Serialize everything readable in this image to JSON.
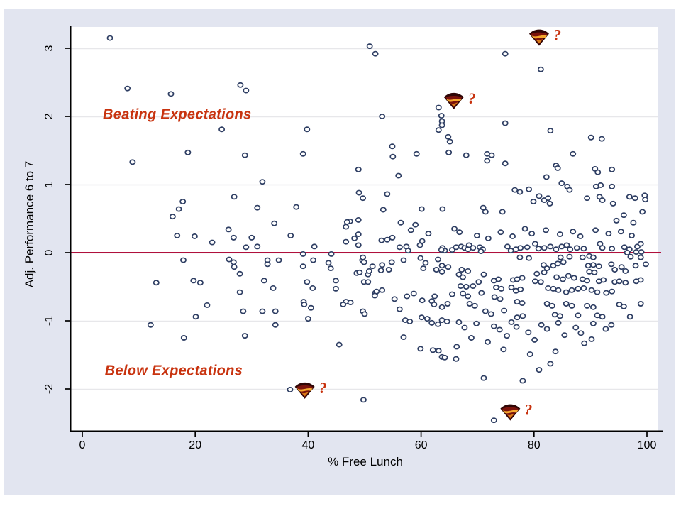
{
  "colors": {
    "graph_region": "#e2e5f0",
    "plot_background": "#ffffff",
    "gridline": "#e7e7ea",
    "axis_line": "#000000",
    "marker_stroke": "#2e3e63",
    "marker_fill": "#ffffff",
    "zero_line": "#b0103c",
    "annotation_text": "#c8330f",
    "shield_dark": "#2f0606",
    "shield_red": "#7c130c",
    "shield_gold": "#f5a82e",
    "shield_amber": "#d97b18"
  },
  "chart_data": {
    "type": "scatter",
    "title": "",
    "xlabel": "% Free Lunch",
    "ylabel": "Adj. Performance 6 to 7",
    "xlim": [
      0,
      100
    ],
    "ylim": [
      -2.6,
      3.3
    ],
    "xticks": [
      0,
      20,
      40,
      60,
      80,
      100
    ],
    "yticks": [
      -2,
      -1,
      0,
      1,
      2,
      3
    ],
    "grid": "horizontal",
    "refline": {
      "y": 0
    },
    "annotations": [
      {
        "text": "Beating Expectations",
        "x": 16.8,
        "y": 2.02
      },
      {
        "text": "Below Expectations",
        "x": 16.2,
        "y": -1.74
      }
    ],
    "superman_markers": [
      {
        "x": 80.9,
        "y": 3.16,
        "label": "?"
      },
      {
        "x": 65.8,
        "y": 2.23,
        "label": "?"
      },
      {
        "x": 39.4,
        "y": -2.02,
        "label": "?"
      },
      {
        "x": 75.8,
        "y": -2.34,
        "label": "?"
      }
    ],
    "points": [
      [
        4.9,
        3.15
      ],
      [
        8,
        2.41
      ],
      [
        15.7,
        2.33
      ],
      [
        28,
        2.46
      ],
      [
        29,
        2.38
      ],
      [
        24.7,
        1.81
      ],
      [
        39.8,
        1.81
      ],
      [
        18.7,
        1.47
      ],
      [
        28.8,
        1.43
      ],
      [
        39.1,
        1.45
      ],
      [
        8.9,
        1.33
      ],
      [
        31.9,
        1.04
      ],
      [
        26.9,
        0.82
      ],
      [
        17.8,
        0.75
      ],
      [
        17.1,
        0.64
      ],
      [
        16,
        0.53
      ],
      [
        31,
        0.66
      ],
      [
        37.9,
        0.67
      ],
      [
        34,
        0.43
      ],
      [
        25.9,
        0.34
      ],
      [
        16.8,
        0.25
      ],
      [
        19.9,
        0.24
      ],
      [
        23,
        0.15
      ],
      [
        26.8,
        0.22
      ],
      [
        30,
        0.22
      ],
      [
        29,
        0.08
      ],
      [
        31,
        0.09
      ],
      [
        36.9,
        0.25
      ],
      [
        41.1,
        0.09
      ],
      [
        46.7,
        0.38
      ],
      [
        47.4,
        0.46
      ],
      [
        48.9,
        0.27
      ],
      [
        44.1,
        -0.02
      ],
      [
        39.1,
        -0.02
      ],
      [
        40.9,
        -0.11
      ],
      [
        39.1,
        -0.2
      ],
      [
        43.6,
        -0.15
      ],
      [
        44,
        -0.23
      ],
      [
        17.9,
        -0.11
      ],
      [
        26,
        -0.1
      ],
      [
        26.8,
        -0.14
      ],
      [
        26.9,
        -0.21
      ],
      [
        32.8,
        -0.11
      ],
      [
        32.8,
        -0.17
      ],
      [
        34.8,
        -0.11
      ],
      [
        27.9,
        -0.31
      ],
      [
        19.7,
        -0.41
      ],
      [
        20.9,
        -0.44
      ],
      [
        13.1,
        -0.44
      ],
      [
        32.2,
        -0.41
      ],
      [
        33.8,
        -0.52
      ],
      [
        27.9,
        -0.58
      ],
      [
        22.1,
        -0.77
      ],
      [
        28.5,
        -0.86
      ],
      [
        39.2,
        -0.72
      ],
      [
        39.8,
        -0.43
      ],
      [
        40.8,
        -0.52
      ],
      [
        44.9,
        -0.41
      ],
      [
        44.9,
        -0.53
      ],
      [
        46.7,
        -0.72
      ],
      [
        48.6,
        -0.3
      ],
      [
        50.6,
        -0.32
      ],
      [
        49.9,
        -0.43
      ],
      [
        50.6,
        -0.43
      ],
      [
        49.6,
        -0.11
      ],
      [
        49.9,
        -0.14
      ],
      [
        51.9,
        -0.59
      ],
      [
        20.1,
        -0.94
      ],
      [
        12.1,
        -1.06
      ],
      [
        18,
        -1.25
      ],
      [
        34.2,
        -0.86
      ],
      [
        31.9,
        -0.86
      ],
      [
        28.8,
        -1.22
      ],
      [
        34.2,
        -1.06
      ],
      [
        39.3,
        -0.76
      ],
      [
        40.5,
        -0.81
      ],
      [
        40,
        -0.97
      ],
      [
        36.8,
        -2.01
      ],
      [
        45.5,
        -1.35
      ],
      [
        50.9,
        3.03
      ],
      [
        51.9,
        2.92
      ],
      [
        74.9,
        2.92
      ],
      [
        81.2,
        2.69
      ],
      [
        53.1,
        2
      ],
      [
        63.1,
        2.13
      ],
      [
        63.7,
        1.93
      ],
      [
        63.7,
        1.87
      ],
      [
        63.1,
        1.8
      ],
      [
        74.9,
        1.9
      ],
      [
        82.9,
        1.79
      ],
      [
        64.8,
        1.7
      ],
      [
        65.1,
        1.63
      ],
      [
        90.1,
        1.69
      ],
      [
        92,
        1.67
      ],
      [
        54.9,
        1.56
      ],
      [
        55,
        1.41
      ],
      [
        59.2,
        1.45
      ],
      [
        64.9,
        1.47
      ],
      [
        68,
        1.43
      ],
      [
        71.7,
        1.45
      ],
      [
        72.5,
        1.43
      ],
      [
        71.7,
        1.35
      ],
      [
        74.9,
        1.31
      ],
      [
        86.9,
        1.45
      ],
      [
        48.9,
        1.22
      ],
      [
        56,
        1.13
      ],
      [
        83.9,
        1.28
      ],
      [
        84.2,
        1.24
      ],
      [
        90.8,
        1.23
      ],
      [
        91.3,
        1.18
      ],
      [
        93.8,
        1.22
      ],
      [
        82.2,
        1.11
      ],
      [
        84.9,
        1.02
      ],
      [
        49,
        0.88
      ],
      [
        49.7,
        0.8
      ],
      [
        46.9,
        0.45
      ],
      [
        48.9,
        0.48
      ],
      [
        53.3,
        0.63
      ],
      [
        54,
        0.86
      ],
      [
        60.1,
        0.64
      ],
      [
        63.8,
        0.64
      ],
      [
        71,
        0.66
      ],
      [
        71.4,
        0.6
      ],
      [
        74.4,
        0.6
      ],
      [
        76.6,
        0.92
      ],
      [
        77.5,
        0.89
      ],
      [
        79.1,
        0.93
      ],
      [
        79.9,
        0.75
      ],
      [
        80.9,
        0.83
      ],
      [
        81.8,
        0.77
      ],
      [
        82.8,
        0.72
      ],
      [
        82.5,
        0.8
      ],
      [
        85.9,
        0.97
      ],
      [
        86.3,
        0.92
      ],
      [
        91,
        0.97
      ],
      [
        91.8,
        0.99
      ],
      [
        93.8,
        0.97
      ],
      [
        89.4,
        0.8
      ],
      [
        91.6,
        0.82
      ],
      [
        92.1,
        0.77
      ],
      [
        94,
        0.72
      ],
      [
        96.9,
        0.82
      ],
      [
        97.9,
        0.8
      ],
      [
        99.6,
        0.84
      ],
      [
        99.7,
        0.78
      ],
      [
        48.2,
        0.21
      ],
      [
        46.7,
        0.16
      ],
      [
        48.9,
        0.11
      ],
      [
        53,
        0.18
      ],
      [
        54,
        0.19
      ],
      [
        54.9,
        0.22
      ],
      [
        57.4,
        0.09
      ],
      [
        57.7,
        0.03
      ],
      [
        60.2,
        0.17
      ],
      [
        63.8,
        0.07
      ],
      [
        64.2,
        0.03
      ],
      [
        68.5,
        0.11
      ],
      [
        69.2,
        0.07
      ],
      [
        70.4,
        0.08
      ],
      [
        70.9,
        0.05
      ],
      [
        75.3,
        0.09
      ],
      [
        75.9,
        0.03
      ],
      [
        76.8,
        0.05
      ],
      [
        77.6,
        0.07
      ],
      [
        78.8,
        0.08
      ],
      [
        80.2,
        0.13
      ],
      [
        80.8,
        0.06
      ],
      [
        81.8,
        0.07
      ],
      [
        82.9,
        0.09
      ],
      [
        83.9,
        0.05
      ],
      [
        84.9,
        0.09
      ],
      [
        85.8,
        0.11
      ],
      [
        86.4,
        0.05
      ],
      [
        87.6,
        0.07
      ],
      [
        88.8,
        0.06
      ],
      [
        91.7,
        0.13
      ],
      [
        92.1,
        0.07
      ],
      [
        93.8,
        0.06
      ],
      [
        96,
        0.08
      ],
      [
        96.9,
        0.05
      ],
      [
        98.3,
        0.09
      ],
      [
        98.9,
        0.13
      ],
      [
        96.5,
        0
      ],
      [
        98.1,
        0.01
      ],
      [
        99,
        0.01
      ],
      [
        56.2,
        0.08
      ],
      [
        59.8,
        0.11
      ],
      [
        66.2,
        0.08
      ],
      [
        67.1,
        0.09
      ],
      [
        67.7,
        0.07
      ],
      [
        68.3,
        0.05
      ],
      [
        63.6,
        0.04
      ],
      [
        65.5,
        0.04
      ],
      [
        70.6,
        0.02
      ],
      [
        63.6,
        2.01
      ],
      [
        56.4,
        0.44
      ],
      [
        58.2,
        0.33
      ],
      [
        61.3,
        0.28
      ],
      [
        59,
        0.41
      ],
      [
        65.9,
        0.35
      ],
      [
        66.8,
        0.3
      ],
      [
        69.9,
        0.25
      ],
      [
        71.9,
        0.21
      ],
      [
        74.1,
        0.3
      ],
      [
        76.2,
        0.24
      ],
      [
        78.4,
        0.35
      ],
      [
        79.6,
        0.28
      ],
      [
        82.1,
        0.33
      ],
      [
        84.6,
        0.27
      ],
      [
        86.9,
        0.31
      ],
      [
        88.2,
        0.24
      ],
      [
        90.9,
        0.33
      ],
      [
        93.2,
        0.28
      ],
      [
        95.4,
        0.31
      ],
      [
        97.3,
        0.25
      ],
      [
        95.9,
        0.55
      ],
      [
        97.6,
        0.44
      ],
      [
        99.2,
        0.6
      ],
      [
        94.6,
        0.47
      ],
      [
        49.7,
        -0.07
      ],
      [
        51.4,
        -0.2
      ],
      [
        53.1,
        -0.18
      ],
      [
        52.9,
        -0.26
      ],
      [
        49.1,
        -0.29
      ],
      [
        50.8,
        -0.27
      ],
      [
        54.3,
        -0.25
      ],
      [
        54.8,
        -0.14
      ],
      [
        56.9,
        -0.11
      ],
      [
        59.9,
        -0.08
      ],
      [
        60.8,
        -0.15
      ],
      [
        60.4,
        -0.23
      ],
      [
        63,
        -0.1
      ],
      [
        63.7,
        -0.19
      ],
      [
        62.7,
        -0.25
      ],
      [
        63.7,
        -0.28
      ],
      [
        66.7,
        -0.32
      ],
      [
        67.2,
        -0.25
      ],
      [
        68.3,
        -0.27
      ],
      [
        67.4,
        -0.36
      ],
      [
        64.8,
        -0.21
      ],
      [
        67,
        -0.49
      ],
      [
        68,
        -0.5
      ],
      [
        69.2,
        -0.49
      ],
      [
        67.4,
        -0.6
      ],
      [
        68.3,
        -0.64
      ],
      [
        70.2,
        -0.43
      ],
      [
        71.1,
        -0.32
      ],
      [
        72.9,
        -0.41
      ],
      [
        73.7,
        -0.39
      ],
      [
        73.3,
        -0.51
      ],
      [
        74.2,
        -0.53
      ],
      [
        76.3,
        -0.4
      ],
      [
        77,
        -0.39
      ],
      [
        77.9,
        -0.37
      ],
      [
        76,
        -0.51
      ],
      [
        76.8,
        -0.56
      ],
      [
        77.6,
        -0.54
      ],
      [
        80.5,
        -0.31
      ],
      [
        81.8,
        -0.29
      ],
      [
        77.5,
        -0.07
      ],
      [
        79.1,
        -0.08
      ],
      [
        84.7,
        -0.07
      ],
      [
        86.3,
        -0.06
      ],
      [
        88.6,
        -0.07
      ],
      [
        89.8,
        -0.05
      ],
      [
        90.5,
        -0.07
      ],
      [
        97.1,
        -0.06
      ],
      [
        98.9,
        -0.07
      ],
      [
        81.7,
        -0.18
      ],
      [
        82.3,
        -0.23
      ],
      [
        83.4,
        -0.19
      ],
      [
        84,
        -0.36
      ],
      [
        85.1,
        -0.39
      ],
      [
        86.1,
        -0.34
      ],
      [
        87.1,
        -0.37
      ],
      [
        84.2,
        -0.16
      ],
      [
        85.2,
        -0.14
      ],
      [
        89.6,
        -0.19
      ],
      [
        90.5,
        -0.18
      ],
      [
        91.5,
        -0.2
      ],
      [
        89.8,
        -0.28
      ],
      [
        90.7,
        -0.29
      ],
      [
        93.7,
        -0.17
      ],
      [
        94.3,
        -0.25
      ],
      [
        95.5,
        -0.21
      ],
      [
        96.2,
        -0.27
      ],
      [
        98,
        -0.19
      ],
      [
        99.8,
        -0.17
      ],
      [
        88.6,
        -0.39
      ],
      [
        89.4,
        -0.41
      ],
      [
        91.5,
        -0.42
      ],
      [
        92.3,
        -0.4
      ],
      [
        94.3,
        -0.43
      ],
      [
        95.1,
        -0.42
      ],
      [
        96.2,
        -0.44
      ],
      [
        98.1,
        -0.42
      ],
      [
        98.9,
        -0.4
      ],
      [
        80.2,
        -0.42
      ],
      [
        81.2,
        -0.43
      ],
      [
        82.5,
        -0.52
      ],
      [
        83.4,
        -0.53
      ],
      [
        84.3,
        -0.55
      ],
      [
        85.7,
        -0.58
      ],
      [
        86.7,
        -0.55
      ],
      [
        87.8,
        -0.53
      ],
      [
        88.8,
        -0.52
      ],
      [
        90.2,
        -0.55
      ],
      [
        91.2,
        -0.58
      ],
      [
        92.8,
        -0.59
      ],
      [
        93.8,
        -0.57
      ],
      [
        95.1,
        -0.76
      ],
      [
        95.9,
        -0.79
      ],
      [
        98.9,
        -0.75
      ],
      [
        97,
        -0.94
      ],
      [
        89.4,
        -0.78
      ],
      [
        90.5,
        -0.8
      ],
      [
        85.7,
        -0.75
      ],
      [
        86.7,
        -0.78
      ],
      [
        82.3,
        -0.75
      ],
      [
        83.2,
        -0.78
      ],
      [
        83.7,
        -0.91
      ],
      [
        84.6,
        -0.93
      ],
      [
        87.8,
        -0.92
      ],
      [
        91.2,
        -0.92
      ],
      [
        92.1,
        -0.94
      ],
      [
        77,
        -0.72
      ],
      [
        77.9,
        -0.74
      ],
      [
        73,
        -0.65
      ],
      [
        74,
        -0.68
      ],
      [
        70.7,
        -0.59
      ],
      [
        68.6,
        -0.75
      ],
      [
        69.5,
        -0.78
      ],
      [
        71.4,
        -0.86
      ],
      [
        72.4,
        -0.9
      ],
      [
        74.7,
        -0.85
      ],
      [
        77,
        -0.95
      ],
      [
        78,
        -0.93
      ],
      [
        64.7,
        -0.75
      ],
      [
        63.7,
        -0.8
      ],
      [
        61.9,
        -0.71
      ],
      [
        62.3,
        -0.76
      ],
      [
        60.2,
        -0.7
      ],
      [
        57.5,
        -0.64
      ],
      [
        52.1,
        -0.57
      ],
      [
        53.1,
        -0.55
      ],
      [
        47.5,
        -0.73
      ],
      [
        46.2,
        -0.76
      ],
      [
        49.7,
        -0.86
      ],
      [
        50,
        -0.9
      ],
      [
        56.2,
        -0.83
      ],
      [
        57.2,
        -0.99
      ],
      [
        58,
        -1.01
      ],
      [
        60.1,
        -0.95
      ],
      [
        61.1,
        -0.97
      ],
      [
        63.7,
        -0.99
      ],
      [
        64.6,
        -1.01
      ],
      [
        63,
        -1.05
      ],
      [
        61.9,
        -1.03
      ],
      [
        66.7,
        -1.02
      ],
      [
        67.7,
        -1.1
      ],
      [
        69.8,
        -1.04
      ],
      [
        72.9,
        -1.08
      ],
      [
        73.9,
        -1.13
      ],
      [
        76,
        -1.02
      ],
      [
        76.9,
        -1.09
      ],
      [
        79,
        -1.17
      ],
      [
        81.3,
        -1.06
      ],
      [
        82.3,
        -1.12
      ],
      [
        84.3,
        -1.03
      ],
      [
        87.4,
        -1.1
      ],
      [
        88.3,
        -1.18
      ],
      [
        90.5,
        -1.04
      ],
      [
        92.7,
        -1.12
      ],
      [
        93.7,
        -1.06
      ],
      [
        56.9,
        -1.24
      ],
      [
        62.1,
        -1.43
      ],
      [
        63.1,
        -1.44
      ],
      [
        63.7,
        -1.53
      ],
      [
        64.2,
        -1.54
      ],
      [
        66.2,
        -1.56
      ],
      [
        59.9,
        -1.41
      ],
      [
        71.1,
        -1.84
      ],
      [
        78,
        -1.88
      ],
      [
        80.9,
        -1.72
      ],
      [
        82.9,
        -1.63
      ],
      [
        49.8,
        -2.16
      ],
      [
        72.9,
        -2.46
      ],
      [
        51.8,
        -0.63
      ],
      [
        55.3,
        -0.68
      ],
      [
        58.7,
        -0.6
      ],
      [
        62.4,
        -0.64
      ],
      [
        65.5,
        -0.61
      ],
      [
        68.9,
        -1.25
      ],
      [
        71.8,
        -1.31
      ],
      [
        75.2,
        -1.22
      ],
      [
        80.1,
        -1.28
      ],
      [
        85.4,
        -1.21
      ],
      [
        88.9,
        -1.33
      ],
      [
        66.3,
        -1.38
      ],
      [
        74.6,
        -1.42
      ],
      [
        79.3,
        -1.49
      ],
      [
        83.8,
        -1.45
      ],
      [
        90.2,
        -1.27
      ]
    ]
  }
}
